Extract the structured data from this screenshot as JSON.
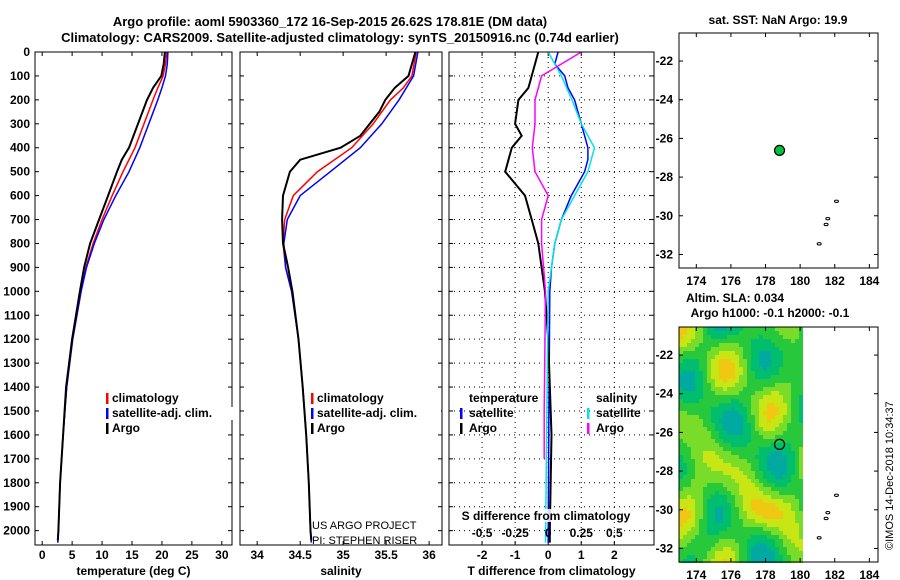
{
  "title_line1": "Argo profile: aoml 5903360_172 16-Sep-2015 26.62S 178.81E (DM data)",
  "title_line2": "Climatology: CARS2009. Satellite-adjusted climatology: synTS_20150916.nc (0.74d earlier)",
  "credit": "©IMOS 14-Dec-2018 10:34:37",
  "project_line1": "US ARGO PROJECT",
  "project_line2": "PI: STEPHEN RISER",
  "colors": {
    "climatology": "#ff0000",
    "satellite": "#0000ff",
    "argo": "#000000",
    "sal_satellite": "#00e5e5",
    "sal_argo": "#ff00ff",
    "float": "#00c040"
  },
  "chart_data": [
    {
      "type": "line",
      "id": "temperature",
      "xlabel": "temperature (deg C)",
      "xlim": [
        -1.2,
        31.7
      ],
      "xticks": [
        "0",
        "5",
        "10",
        "15",
        "20",
        "25",
        "30"
      ],
      "ylim": [
        0,
        2060
      ],
      "yticks": [
        "0",
        "100",
        "200",
        "300",
        "400",
        "500",
        "600",
        "700",
        "800",
        "900",
        "1000",
        "1100",
        "1200",
        "1300",
        "1400",
        "1500",
        "1600",
        "1700",
        "1800",
        "1900",
        "2000"
      ],
      "legend": [
        "climatology",
        "satellite-adj. clim.",
        "Argo"
      ],
      "series": [
        {
          "name": "climatology",
          "color": "#ff0000",
          "points": [
            [
              0,
              20.8
            ],
            [
              50,
              20.6
            ],
            [
              100,
              20.2
            ],
            [
              150,
              19.3
            ],
            [
              200,
              18.5
            ],
            [
              300,
              17
            ],
            [
              400,
              15.5
            ],
            [
              500,
              13.5
            ],
            [
              600,
              11.7
            ],
            [
              700,
              10
            ],
            [
              800,
              8.5
            ],
            [
              900,
              7.3
            ],
            [
              1000,
              6.5
            ],
            [
              1200,
              5.1
            ],
            [
              1400,
              4.1
            ],
            [
              1600,
              3.5
            ],
            [
              1800,
              3
            ],
            [
              2000,
              2.7
            ],
            [
              2050,
              2.6
            ]
          ]
        },
        {
          "name": "satellite-adj. clim.",
          "color": "#0000ff",
          "points": [
            [
              0,
              21
            ],
            [
              50,
              20.9
            ],
            [
              100,
              20.6
            ],
            [
              150,
              20
            ],
            [
              200,
              19.3
            ],
            [
              300,
              17.8
            ],
            [
              400,
              16.3
            ],
            [
              500,
              14.5
            ],
            [
              600,
              12.3
            ],
            [
              700,
              10.3
            ],
            [
              800,
              8.7
            ],
            [
              900,
              7.4
            ],
            [
              1000,
              6.5
            ],
            [
              1200,
              5.1
            ],
            [
              1400,
              4.1
            ],
            [
              1600,
              3.5
            ],
            [
              1800,
              3
            ],
            [
              2000,
              2.7
            ],
            [
              2050,
              2.6
            ]
          ]
        },
        {
          "name": "Argo",
          "color": "#000000",
          "points": [
            [
              0,
              20.5
            ],
            [
              50,
              20.3
            ],
            [
              100,
              19.9
            ],
            [
              150,
              18.5
            ],
            [
              200,
              17.5
            ],
            [
              300,
              16
            ],
            [
              400,
              14.5
            ],
            [
              450,
              13.3
            ],
            [
              500,
              12.5
            ],
            [
              600,
              11
            ],
            [
              700,
              9.5
            ],
            [
              800,
              8
            ],
            [
              900,
              7
            ],
            [
              1000,
              6.3
            ],
            [
              1200,
              5
            ],
            [
              1400,
              4
            ],
            [
              1600,
              3.5
            ],
            [
              1800,
              3
            ],
            [
              2000,
              2.7
            ],
            [
              2040,
              2.6
            ]
          ]
        }
      ]
    },
    {
      "type": "line",
      "id": "salinity",
      "xlabel": "salinity",
      "xlim": [
        33.8,
        36.15
      ],
      "xticks": [
        "34",
        "34.5",
        "35",
        "35.5",
        "36"
      ],
      "ylim": [
        0,
        2060
      ],
      "legend": [
        "climatology",
        "satellite-adj. clim.",
        "Argo"
      ],
      "series": [
        {
          "name": "climatology",
          "color": "#ff0000",
          "points": [
            [
              0,
              35.85
            ],
            [
              100,
              35.8
            ],
            [
              150,
              35.7
            ],
            [
              200,
              35.55
            ],
            [
              300,
              35.35
            ],
            [
              400,
              35.1
            ],
            [
              500,
              34.7
            ],
            [
              600,
              34.42
            ],
            [
              700,
              34.32
            ],
            [
              800,
              34.3
            ],
            [
              900,
              34.33
            ],
            [
              1000,
              34.4
            ],
            [
              1200,
              34.48
            ],
            [
              1400,
              34.53
            ],
            [
              1600,
              34.57
            ],
            [
              1800,
              34.6
            ],
            [
              2000,
              34.62
            ],
            [
              2050,
              34.63
            ]
          ]
        },
        {
          "name": "satellite-adj. clim.",
          "color": "#0000ff",
          "points": [
            [
              0,
              35.87
            ],
            [
              100,
              35.82
            ],
            [
              200,
              35.65
            ],
            [
              300,
              35.45
            ],
            [
              400,
              35.2
            ],
            [
              500,
              34.85
            ],
            [
              600,
              34.5
            ],
            [
              700,
              34.35
            ],
            [
              800,
              34.31
            ],
            [
              900,
              34.33
            ],
            [
              1000,
              34.4
            ],
            [
              1200,
              34.48
            ],
            [
              1400,
              34.53
            ],
            [
              1600,
              34.57
            ],
            [
              1800,
              34.6
            ],
            [
              2000,
              34.62
            ],
            [
              2050,
              34.63
            ]
          ]
        },
        {
          "name": "Argo",
          "color": "#000000",
          "points": [
            [
              0,
              35.84
            ],
            [
              50,
              35.8
            ],
            [
              100,
              35.76
            ],
            [
              150,
              35.6
            ],
            [
              200,
              35.49
            ],
            [
              250,
              35.42
            ],
            [
              300,
              35.31
            ],
            [
              350,
              35.2
            ],
            [
              400,
              34.97
            ],
            [
              450,
              34.5
            ],
            [
              500,
              34.38
            ],
            [
              600,
              34.3
            ],
            [
              700,
              34.29
            ],
            [
              800,
              34.3
            ],
            [
              850,
              34.33
            ],
            [
              900,
              34.36
            ],
            [
              1000,
              34.41
            ],
            [
              1200,
              34.48
            ],
            [
              1400,
              34.53
            ],
            [
              1600,
              34.57
            ],
            [
              1800,
              34.6
            ],
            [
              2000,
              34.62
            ],
            [
              2040,
              34.63
            ]
          ]
        }
      ]
    },
    {
      "type": "line",
      "id": "difference",
      "xlabel": "T difference from climatology",
      "xlim": [
        -3,
        3.2
      ],
      "xticks": [
        "-2",
        "-1",
        "0",
        "1",
        "2"
      ],
      "x2label": "S difference from climatology",
      "x2ticks": [
        "-0.5",
        "-0.25",
        "0",
        "0.25",
        "0.5"
      ],
      "x2scale": 0.25,
      "ylim": [
        0,
        2060
      ],
      "legend_temperature": {
        "heading": "temperature",
        "items": [
          "satellite",
          "Argo"
        ]
      },
      "legend_salinity": {
        "heading": "salinity",
        "items": [
          "satellite",
          "Argo"
        ]
      },
      "series": [
        {
          "name": "temperature satellite",
          "color": "#0000ff",
          "units": "T",
          "points": [
            [
              0,
              0.3
            ],
            [
              50,
              0.2
            ],
            [
              100,
              0.5
            ],
            [
              150,
              0.6
            ],
            [
              200,
              0.8
            ],
            [
              300,
              1.0
            ],
            [
              350,
              1.1
            ],
            [
              400,
              1.2
            ],
            [
              450,
              1.2
            ],
            [
              500,
              1.1
            ],
            [
              550,
              0.9
            ],
            [
              600,
              0.7
            ],
            [
              700,
              0.4
            ],
            [
              800,
              0.2
            ],
            [
              900,
              0.1
            ],
            [
              1000,
              0.05
            ],
            [
              1500,
              0.02
            ],
            [
              2050,
              0.0
            ]
          ]
        },
        {
          "name": "temperature Argo",
          "color": "#000000",
          "units": "T",
          "points": [
            [
              0,
              -0.3
            ],
            [
              50,
              -0.4
            ],
            [
              100,
              -0.5
            ],
            [
              150,
              -0.6
            ],
            [
              200,
              -0.9
            ],
            [
              300,
              -1.0
            ],
            [
              350,
              -0.8
            ],
            [
              400,
              -1.1
            ],
            [
              450,
              -1.2
            ],
            [
              500,
              -1.3
            ],
            [
              550,
              -1.0
            ],
            [
              600,
              -0.7
            ],
            [
              700,
              -0.5
            ],
            [
              800,
              -0.3
            ],
            [
              900,
              -0.2
            ],
            [
              1000,
              -0.1
            ],
            [
              1200,
              0.0
            ],
            [
              1600,
              0.1
            ],
            [
              2000,
              0.05
            ],
            [
              2050,
              0.05
            ]
          ]
        },
        {
          "name": "salinity satellite",
          "color": "#00e5e5",
          "units": "S",
          "points": [
            [
              0,
              0.0
            ],
            [
              50,
              0.05
            ],
            [
              100,
              0.1
            ],
            [
              200,
              0.18
            ],
            [
              300,
              0.25
            ],
            [
              400,
              0.35
            ],
            [
              500,
              0.3
            ],
            [
              600,
              0.2
            ],
            [
              700,
              0.1
            ],
            [
              800,
              0.05
            ],
            [
              1000,
              0.0
            ],
            [
              1500,
              -0.01
            ],
            [
              2050,
              -0.02
            ]
          ]
        },
        {
          "name": "salinity Argo",
          "color": "#ff00ff",
          "units": "S",
          "points": [
            [
              0,
              0.25
            ],
            [
              50,
              0.1
            ],
            [
              100,
              -0.05
            ],
            [
              200,
              -0.1
            ],
            [
              300,
              -0.1
            ],
            [
              400,
              -0.12
            ],
            [
              500,
              -0.1
            ],
            [
              600,
              0.0
            ],
            [
              700,
              -0.05
            ],
            [
              800,
              -0.05
            ],
            [
              1000,
              -0.02
            ],
            [
              1500,
              -0.03
            ],
            [
              1700,
              -0.03
            ]
          ]
        }
      ]
    },
    {
      "type": "scatter",
      "id": "sst-map",
      "title": "sat. SST: NaN Argo: 19.9",
      "xlim": [
        173,
        184.5
      ],
      "ylim": [
        -32.7,
        -20.55
      ],
      "xticks": [
        "174",
        "176",
        "178",
        "180",
        "182",
        "184"
      ],
      "yticks": [
        "-22",
        "-24",
        "-26",
        "-28",
        "-30",
        "-32"
      ],
      "argo_position": [
        178.81,
        -26.62
      ],
      "islands": [
        [
          182.1,
          -29.25
        ],
        [
          181.6,
          -30.15
        ],
        [
          181.5,
          -30.45
        ],
        [
          181.1,
          -31.45
        ]
      ]
    },
    {
      "type": "heatmap",
      "id": "sla-map",
      "title_line1": "Altim. SLA: 0.034",
      "title_line2": "Argo h1000: -0.1 h2000: -0.1",
      "xlim": [
        173,
        184.5
      ],
      "ylim": [
        -32.7,
        -20.55
      ],
      "field_lon_range": [
        173,
        180
      ],
      "xticks": [
        "174",
        "176",
        "178",
        "180",
        "182",
        "184"
      ],
      "yticks": [
        "-22",
        "-24",
        "-26",
        "-28",
        "-30",
        "-32"
      ],
      "argo_position": [
        178.81,
        -26.62
      ],
      "islands": [
        [
          182.1,
          -29.25
        ],
        [
          181.6,
          -30.15
        ],
        [
          181.5,
          -30.45
        ],
        [
          181.1,
          -31.45
        ]
      ]
    }
  ]
}
